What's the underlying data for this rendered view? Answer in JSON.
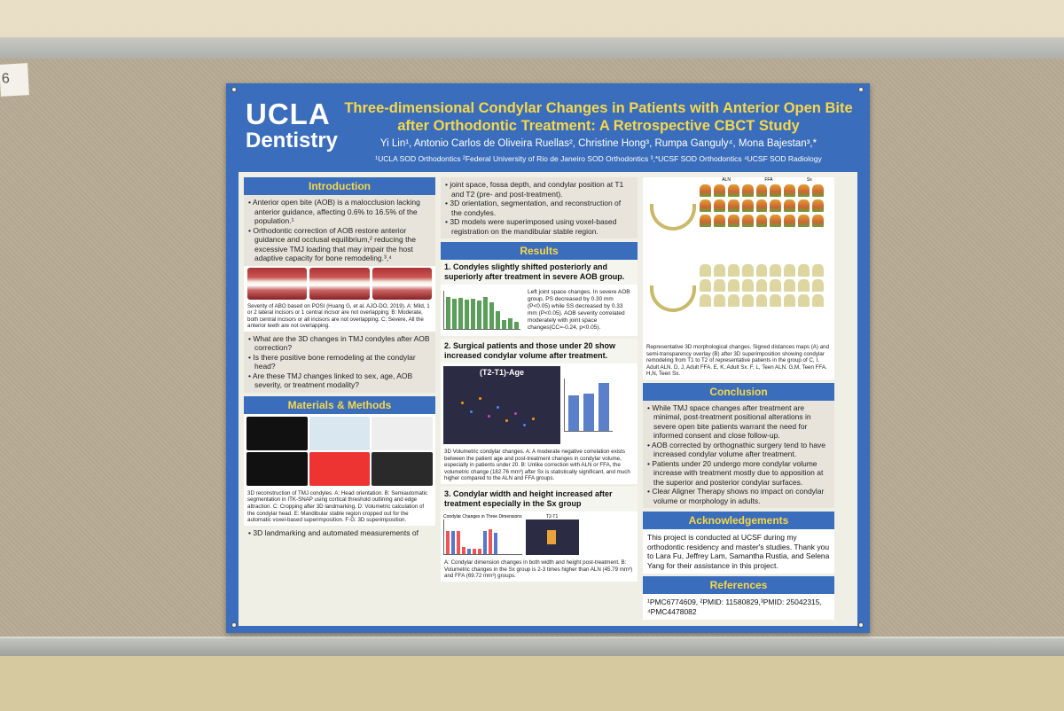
{
  "side_tag": "6",
  "poster": {
    "logo_line1": "UCLA",
    "logo_line2": "Dentistry",
    "title": "Three-dimensional Condylar Changes in Patients with Anterior Open Bite after Orthodontic Treatment: A Retrospective CBCT Study",
    "authors": "Yi Lin¹, Antonio Carlos de Oliveira Ruellas², Christine Hong³, Rumpa Ganguly⁴, Mona Bajestan³,*",
    "affiliations": "¹UCLA SOD Orthodontics ²Federal University of Rio de Janeiro SOD Orthodontics ³,*UCSF SOD Orthodontics ⁴UCSF SOD Radiology"
  },
  "introduction": {
    "header": "Introduction",
    "bullets": [
      "Anterior open bite (AOB) is a malocclusion lacking anterior guidance, affecting 0.6% to 16.5% of the population.¹",
      "Orthodontic correction of AOB restore anterior guidance and occlusal equilibrium,² reducing the excessive TMJ loading that may impair the host adaptive capacity for bone remodeling.³,⁴"
    ],
    "caption": "Severity of ABO based on POSI (Huang G, et al. AJO-DO, 2019). A: Mild, 1 or 2 lateral incisors or 1 central incisor are not overlapping. B: Moderate, both central incisors or all incisors are not overlapping. C: Severe, All the anterior teeth are not overlapping.",
    "questions": [
      "What are the 3D changes in TMJ condyles after AOB correction?",
      "Is there positive bone remodeling at the condylar head?",
      "Are these TMJ changes linked to sex, age, AOB severity, or treatment modality?"
    ]
  },
  "methods": {
    "header": "Materials & Methods",
    "caption": "3D reconstruction of TMJ condyles. A: Head orientation. B: Semiautomatic segmentation in ITK-SNAP using cortical threshold outlining and edge attraction. C: Cropping after 3D landmarking. D: Volumetric calculation of the condylar head. E: Mandibular stable region cropped out for the automatic voxel-based superimposition. F-G: 3D superimposition.",
    "bullet_bottom": "3D landmarking and automated measurements of"
  },
  "middle": {
    "continued_bullets": [
      "joint space, fossa depth, and condylar position at T1 and T2 (pre- and post-treatment).",
      "3D orientation, segmentation, and reconstruction of the condyles.",
      "3D models were superimposed using voxel-based registration on the mandibular stable region."
    ],
    "results_header": "Results",
    "finding1": "1. Condyles slightly shifted posteriorly and superiorly after treatment in severe AOB group.",
    "finding1_note": "Left joint space changes. In severe AOB group, PS decreased by 0.30 mm (P<0.05) while SS decreased by 0.33 mm (P<0.05). AOB severity correlated moderately with joint space changes(CC=-0.24, p<0.05).",
    "finding2": "2. Surgical patients and those under 20 show increased condylar volume after treatment.",
    "scatter_title": "(T2-T1)-Age",
    "finding2_caption": "3D Volumetric condylar changes. A: A moderate negative correlation exists between the patient age and post-treatment changes in condylar volume, especially in patients under 20. B: Unlike correction with ALN or FFA, the volumetric change (182.76 mm³) after Sx is statistically significant, and much higher compared to the ALN and FFA groups.",
    "finding3": "3. Condylar width and height increased after treatment especially in the Sx group",
    "chart3_title": "Condylar Changes in Three Dimensions",
    "chart3b_title": "T2-T1",
    "finding3_caption": "A: Condylar dimension changes in both width and height post-treatment. B: Volumetric changes in the Sx group is 2-3 times higher than ALN (45.79 mm³) and FFA (69.72 mm³) groups."
  },
  "right": {
    "morph_labels": [
      "ALN",
      "FFA",
      "Sx"
    ],
    "morph_caption": "Representative 3D morphological changes. Signed distances maps (A) and semi-transparency overlay (B) after 3D superimposition showing condylar remodeling from T1 to T2 of representative patients in the group of C, I, Adult ALN. D, J, Adult FFA. E, K, Adult Sx. F, L, Teen ALN. G,M, Teen FFA. H,N, Teen Sx.",
    "conclusion_header": "Conclusion",
    "conclusions": [
      "While TMJ space changes after treatment are minimal, post-treatment positional alterations in severe open bite patients warrant the need for informed consent and close follow-up.",
      "AOB corrected by orthognathic surgery tend to have increased condylar volume after treatment.",
      "Patients under 20 undergo more condylar volume increase with treatment mostly due to apposition at the superior and posterior condylar surfaces.",
      "Clear Aligner Therapy shows no impact on condylar volume or morphology in adults."
    ],
    "ack_header": "Acknowledgements",
    "ack_text": "This project is conducted at UCSF during my orthodontic residency and master's studies. Thank you to Lara Fu, Jeffrey Lam, Samantha Rustia, and Selena Yang for their assistance in this project.",
    "ref_header": "References",
    "ref_text": "¹PMC6774609, ²PMID: 11580829,³PMID: 25042315, ⁴PMC4478082"
  }
}
